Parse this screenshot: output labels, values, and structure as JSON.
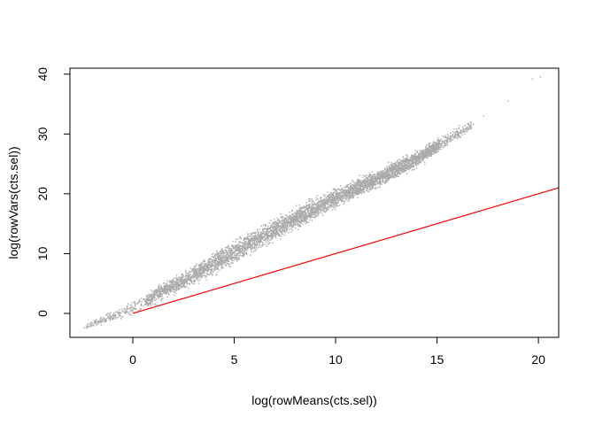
{
  "chart_data": {
    "type": "scatter",
    "title": "",
    "xlabel": "log(rowMeans(cts.sel))",
    "ylabel": "log(rowVars(cts.sel))",
    "xlim": [
      -3.1,
      21.0
    ],
    "ylim": [
      -4.0,
      41.0
    ],
    "x_ticks": [
      0,
      5,
      10,
      15,
      20
    ],
    "y_ticks": [
      0,
      10,
      20,
      30,
      40
    ],
    "grid": false,
    "point_color": "#aaaaaa",
    "line_color": "#ff0000",
    "trend": {
      "x": [
        -2.5,
        0,
        2,
        4,
        6,
        8,
        10,
        12,
        14,
        15,
        17,
        20
      ],
      "y": [
        -2.5,
        0.9,
        4.6,
        8.3,
        12.2,
        15.8,
        19.3,
        22.4,
        25.8,
        28.0,
        32.0,
        39.5
      ]
    },
    "band_halfwidth": [
      0.3,
      0.9,
      1.2,
      1.4,
      1.5,
      1.4,
      1.3,
      1.2,
      1.1,
      1.0,
      0.6,
      0.3
    ],
    "sparse_points": [
      {
        "x": -2.4,
        "y": -2.4
      },
      {
        "x": -1.7,
        "y": -1.5
      },
      {
        "x": -1.4,
        "y": -0.8
      },
      {
        "x": -0.9,
        "y": -0.3
      },
      {
        "x": 16.2,
        "y": 30.5
      },
      {
        "x": 16.8,
        "y": 31.6
      },
      {
        "x": 17.3,
        "y": 33.0
      },
      {
        "x": 18.5,
        "y": 35.5
      },
      {
        "x": 19.7,
        "y": 39.2
      },
      {
        "x": 20.1,
        "y": 39.5
      }
    ],
    "reference_line": {
      "x": [
        0,
        21
      ],
      "y": [
        0,
        21
      ]
    }
  }
}
